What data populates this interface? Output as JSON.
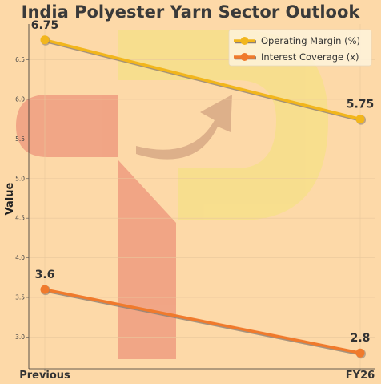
{
  "chart_data": {
    "type": "line",
    "title": "India Polyester Yarn Sector Outlook",
    "xlabel": "",
    "ylabel": "Value",
    "categories": [
      "Previous",
      "FY26"
    ],
    "ylim": [
      2.6,
      6.95
    ],
    "yticks": [
      "3.0",
      "3.5",
      "4.0",
      "4.5",
      "5.0",
      "5.5",
      "6.0",
      "6.5"
    ],
    "grid": true,
    "legend": "top-right",
    "series": [
      {
        "name": "Operating Margin (%)",
        "values": [
          6.75,
          5.75
        ],
        "labels": [
          "6.75",
          "5.75"
        ],
        "color": "#f2b61c"
      },
      {
        "name": "Interest Coverage (x)",
        "values": [
          3.6,
          2.8
        ],
        "labels": [
          "3.6",
          "2.8"
        ],
        "color": "#f07a2c"
      }
    ]
  },
  "colors": {
    "background": "#fdd9a8",
    "watermark_yellow": "#f7df8a",
    "watermark_red": "#ef9c80",
    "arrow": "#d8a985"
  }
}
